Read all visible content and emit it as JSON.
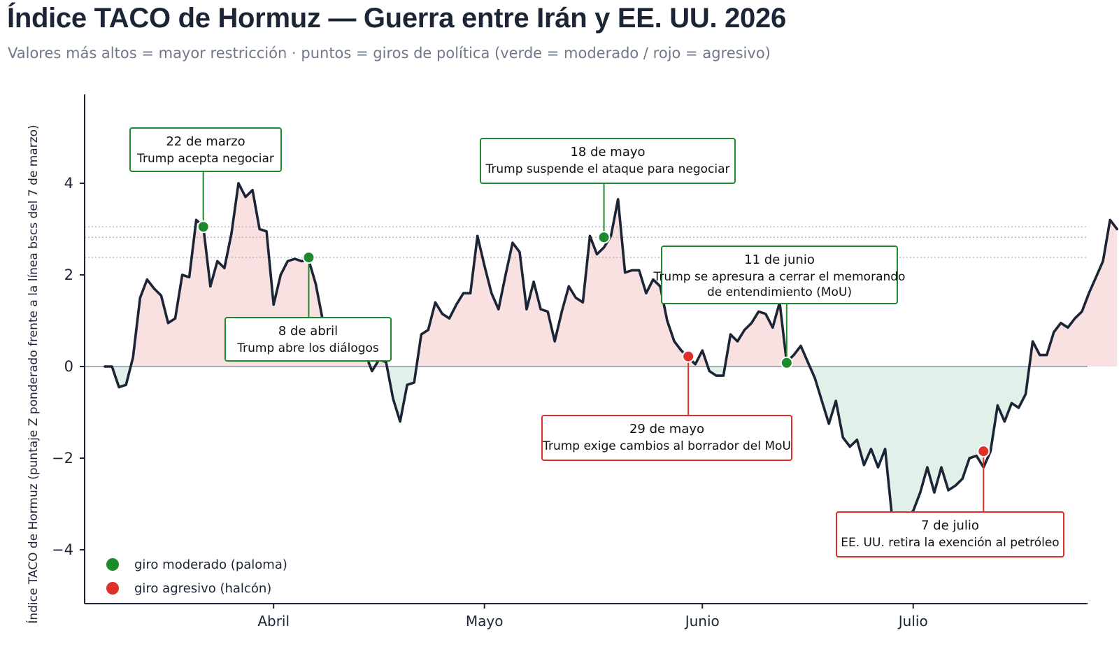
{
  "title": "Índice TACO de Hormuz — Guerra entre Irán y EE. UU. 2026",
  "subtitle": "Valores más altos = mayor restricción   ·   puntos = giros de política (verde = moderado / rojo = agresivo)",
  "colors": {
    "line": "#1b2536",
    "positive_fill": "#f8dcdc",
    "negative_fill": "#dcefe6",
    "dove": "#1e8a2e",
    "hawk": "#e0302a",
    "zero_line": "#8a97a6",
    "ref_line": "#a9b2bc",
    "axis": "#1b2536"
  },
  "chart_data": {
    "type": "line",
    "xlabel": "",
    "ylabel": "Índice TACO de Hormuz (puntaje Z ponderado frente a la línea bscs del 7 de marzo)",
    "x_start": "2026-03-08",
    "x_end": "2026-07-23",
    "ylim": [
      -5.2,
      5.9
    ],
    "yticks": [
      {
        "value": 4,
        "label": "4"
      },
      {
        "value": 2,
        "label": "2"
      },
      {
        "value": 0,
        "label": "0"
      },
      {
        "value": -2,
        "label": "−2"
      },
      {
        "value": -4,
        "label": "−4"
      }
    ],
    "xticks": [
      {
        "date": "2026-04-01",
        "label": "Abril"
      },
      {
        "date": "2026-05-01",
        "label": "Mayo"
      },
      {
        "date": "2026-06-01",
        "label": "Junio"
      },
      {
        "date": "2026-07-01",
        "label": "Julio"
      }
    ],
    "reference_lines": [
      3.05,
      2.82,
      2.38
    ],
    "grid": false,
    "series": [
      {
        "values": [
          [
            "2026-03-08",
            0.0
          ],
          [
            "2026-03-09",
            0.0
          ],
          [
            "2026-03-10",
            -0.45
          ],
          [
            "2026-03-11",
            -0.4
          ],
          [
            "2026-03-12",
            0.2
          ],
          [
            "2026-03-13",
            1.5
          ],
          [
            "2026-03-14",
            1.9
          ],
          [
            "2026-03-15",
            1.7
          ],
          [
            "2026-03-16",
            1.55
          ],
          [
            "2026-03-17",
            0.95
          ],
          [
            "2026-03-18",
            1.05
          ],
          [
            "2026-03-19",
            2.0
          ],
          [
            "2026-03-20",
            1.95
          ],
          [
            "2026-03-21",
            3.2
          ],
          [
            "2026-03-22",
            3.05
          ],
          [
            "2026-03-23",
            1.75
          ],
          [
            "2026-03-24",
            2.3
          ],
          [
            "2026-03-25",
            2.15
          ],
          [
            "2026-03-26",
            2.9
          ],
          [
            "2026-03-27",
            4.0
          ],
          [
            "2026-03-28",
            3.7
          ],
          [
            "2026-03-29",
            3.85
          ],
          [
            "2026-03-30",
            3.0
          ],
          [
            "2026-03-31",
            2.95
          ],
          [
            "2026-04-01",
            1.35
          ],
          [
            "2026-04-02",
            2.0
          ],
          [
            "2026-04-03",
            2.3
          ],
          [
            "2026-04-04",
            2.35
          ],
          [
            "2026-04-05",
            2.3
          ],
          [
            "2026-04-06",
            2.32
          ],
          [
            "2026-04-07",
            1.8
          ],
          [
            "2026-04-08",
            1.0
          ],
          [
            "2026-04-09",
            0.6
          ],
          [
            "2026-04-10",
            0.3
          ],
          [
            "2026-04-11",
            0.4
          ],
          [
            "2026-04-12",
            0.2
          ],
          [
            "2026-04-13",
            0.35
          ],
          [
            "2026-04-14",
            0.3
          ],
          [
            "2026-04-15",
            -0.1
          ],
          [
            "2026-04-16",
            0.15
          ],
          [
            "2026-04-17",
            0.1
          ],
          [
            "2026-04-18",
            -0.7
          ],
          [
            "2026-04-19",
            -1.2
          ],
          [
            "2026-04-20",
            -0.4
          ],
          [
            "2026-04-21",
            -0.35
          ],
          [
            "2026-04-22",
            0.7
          ],
          [
            "2026-04-23",
            0.8
          ],
          [
            "2026-04-24",
            1.4
          ],
          [
            "2026-04-25",
            1.15
          ],
          [
            "2026-04-26",
            1.05
          ],
          [
            "2026-04-27",
            1.35
          ],
          [
            "2026-04-28",
            1.6
          ],
          [
            "2026-04-29",
            1.6
          ],
          [
            "2026-04-30",
            2.85
          ],
          [
            "2026-05-01",
            2.2
          ],
          [
            "2026-05-02",
            1.6
          ],
          [
            "2026-05-03",
            1.25
          ],
          [
            "2026-05-04",
            2.0
          ],
          [
            "2026-05-05",
            2.7
          ],
          [
            "2026-05-06",
            2.5
          ],
          [
            "2026-05-07",
            1.25
          ],
          [
            "2026-05-08",
            1.85
          ],
          [
            "2026-05-09",
            1.25
          ],
          [
            "2026-05-10",
            1.2
          ],
          [
            "2026-05-11",
            0.55
          ],
          [
            "2026-05-12",
            1.2
          ],
          [
            "2026-05-13",
            1.75
          ],
          [
            "2026-05-14",
            1.5
          ],
          [
            "2026-05-15",
            1.4
          ],
          [
            "2026-05-16",
            2.85
          ],
          [
            "2026-05-17",
            2.45
          ],
          [
            "2026-05-18",
            2.6
          ],
          [
            "2026-05-19",
            2.85
          ],
          [
            "2026-05-20",
            3.65
          ],
          [
            "2026-05-21",
            2.05
          ],
          [
            "2026-05-22",
            2.1
          ],
          [
            "2026-05-23",
            2.1
          ],
          [
            "2026-05-24",
            1.6
          ],
          [
            "2026-05-25",
            1.9
          ],
          [
            "2026-05-26",
            1.75
          ],
          [
            "2026-05-27",
            1.0
          ],
          [
            "2026-05-28",
            0.55
          ],
          [
            "2026-05-29",
            0.35
          ],
          [
            "2026-05-30",
            0.2
          ],
          [
            "2026-05-31",
            0.05
          ],
          [
            "2026-06-01",
            0.35
          ],
          [
            "2026-06-02",
            -0.1
          ],
          [
            "2026-06-03",
            -0.2
          ],
          [
            "2026-06-04",
            -0.2
          ],
          [
            "2026-06-05",
            0.7
          ],
          [
            "2026-06-06",
            0.55
          ],
          [
            "2026-06-07",
            0.8
          ],
          [
            "2026-06-08",
            0.95
          ],
          [
            "2026-06-09",
            1.2
          ],
          [
            "2026-06-10",
            1.15
          ],
          [
            "2026-06-11",
            0.85
          ],
          [
            "2026-06-12",
            1.4
          ],
          [
            "2026-06-13",
            0.1
          ],
          [
            "2026-06-14",
            0.25
          ],
          [
            "2026-06-15",
            0.45
          ],
          [
            "2026-06-16",
            0.1
          ],
          [
            "2026-06-17",
            -0.25
          ],
          [
            "2026-06-18",
            -0.75
          ],
          [
            "2026-06-19",
            -1.25
          ],
          [
            "2026-06-20",
            -0.75
          ],
          [
            "2026-06-21",
            -1.55
          ],
          [
            "2026-06-22",
            -1.75
          ],
          [
            "2026-06-23",
            -1.6
          ],
          [
            "2026-06-24",
            -2.15
          ],
          [
            "2026-06-25",
            -1.8
          ],
          [
            "2026-06-26",
            -2.2
          ],
          [
            "2026-06-27",
            -1.8
          ],
          [
            "2026-06-28",
            -3.3
          ],
          [
            "2026-06-29",
            -3.55
          ],
          [
            "2026-06-30",
            -3.3
          ],
          [
            "2026-07-01",
            -3.15
          ],
          [
            "2026-07-02",
            -2.75
          ],
          [
            "2026-07-03",
            -2.2
          ],
          [
            "2026-07-04",
            -2.75
          ],
          [
            "2026-07-05",
            -2.2
          ],
          [
            "2026-07-06",
            -2.7
          ],
          [
            "2026-07-07",
            -2.6
          ],
          [
            "2026-07-08",
            -2.45
          ],
          [
            "2026-07-09",
            -2.0
          ],
          [
            "2026-07-10",
            -1.95
          ],
          [
            "2026-07-11",
            -2.2
          ],
          [
            "2026-07-12",
            -1.85
          ],
          [
            "2026-07-13",
            -0.85
          ],
          [
            "2026-07-14",
            -1.2
          ],
          [
            "2026-07-15",
            -0.8
          ],
          [
            "2026-07-16",
            -0.9
          ],
          [
            "2026-07-17",
            -0.6
          ],
          [
            "2026-07-18",
            0.55
          ],
          [
            "2026-07-19",
            0.25
          ],
          [
            "2026-07-20",
            0.25
          ],
          [
            "2026-07-21",
            0.75
          ],
          [
            "2026-07-22",
            0.95
          ],
          [
            "2026-07-23",
            0.85
          ],
          [
            "2026-07-24",
            1.05
          ],
          [
            "2026-07-25",
            1.2
          ],
          [
            "2026-07-26",
            1.6
          ],
          [
            "2026-07-27",
            1.95
          ],
          [
            "2026-07-28",
            2.3
          ],
          [
            "2026-07-29",
            3.2
          ],
          [
            "2026-07-30",
            3.0
          ]
        ]
      }
    ],
    "events": [
      {
        "date": "2026-03-22",
        "value": 3.05,
        "kind": "dove",
        "label_date": "22 de marzo",
        "text": [
          "Trump acepta negociar"
        ]
      },
      {
        "date": "2026-04-06",
        "value": 2.38,
        "kind": "dove",
        "label_date": "8 de abril",
        "text": [
          "Trump abre los diálogos"
        ]
      },
      {
        "date": "2026-05-18",
        "value": 2.82,
        "kind": "dove",
        "label_date": "18 de mayo",
        "text": [
          "Trump suspende el ataque para negociar"
        ]
      },
      {
        "date": "2026-05-30",
        "value": 0.22,
        "kind": "hawk",
        "label_date": "29 de mayo",
        "text": [
          "Trump exige cambios al borrador del MoU"
        ]
      },
      {
        "date": "2026-06-13",
        "value": 0.08,
        "kind": "dove",
        "label_date": "11 de junio",
        "text": [
          "Trump se apresura a cerrar el memorando",
          "de entendimiento (MoU)"
        ]
      },
      {
        "date": "2026-07-11",
        "value": -1.85,
        "kind": "hawk",
        "label_date": "7 de julio",
        "text": [
          "EE. UU. retira la exención al petróleo"
        ]
      }
    ],
    "legend": {
      "position": "bottom-left",
      "items": [
        {
          "kind": "dove",
          "label": "giro moderado (paloma)"
        },
        {
          "kind": "hawk",
          "label": "giro agresivo (halcón)"
        }
      ]
    }
  }
}
